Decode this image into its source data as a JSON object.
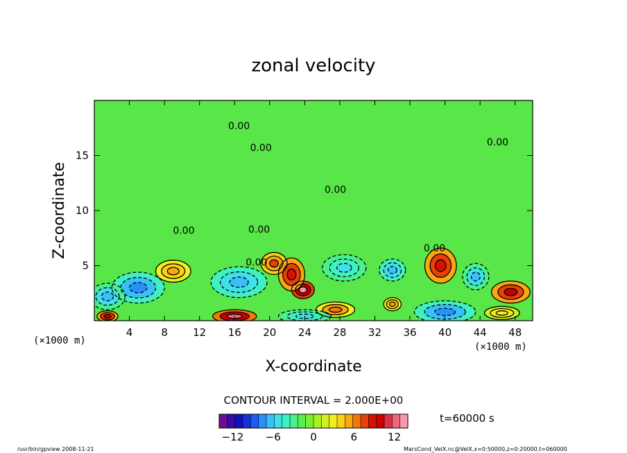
{
  "chart_data": {
    "type": "heatmap",
    "title": "zonal velocity",
    "xlabel": "X-coordinate",
    "ylabel": "Z-coordinate",
    "x_unit_left": "(×1000 m)",
    "x_unit_right": "(×1000 m)",
    "xlim": [
      0,
      50
    ],
    "ylim": [
      0,
      20
    ],
    "x_ticks": [
      4,
      8,
      12,
      16,
      20,
      24,
      28,
      32,
      36,
      40,
      44,
      48
    ],
    "y_ticks": [
      5,
      10,
      15
    ],
    "contour_interval_text": "CONTOUR INTERVAL = 2.000E+00",
    "time_label": "t=60000 s",
    "colorbar": {
      "range": [
        -14,
        14
      ],
      "ticks": [
        -12,
        -6,
        0,
        6,
        12
      ],
      "colors": [
        "#6a0f91",
        "#3a0aa8",
        "#1010c0",
        "#1430d8",
        "#1c5cf0",
        "#2890f8",
        "#38c0f8",
        "#40e0e8",
        "#40f0c0",
        "#48f090",
        "#58f050",
        "#78f030",
        "#a8f020",
        "#d0f020",
        "#f0f020",
        "#f8d018",
        "#f8a810",
        "#f07808",
        "#e84008",
        "#d81000",
        "#c80000",
        "#e03040",
        "#f06880",
        "#f898b0"
      ]
    },
    "contour_labels": [
      {
        "text": "0.00",
        "x": 16.5,
        "y": 17.4
      },
      {
        "text": "0.00",
        "x": 19.0,
        "y": 15.4
      },
      {
        "text": "0.00",
        "x": 46.0,
        "y": 15.9
      },
      {
        "text": "0.00",
        "x": 27.5,
        "y": 11.6
      },
      {
        "text": "0.00",
        "x": 10.2,
        "y": 7.9
      },
      {
        "text": "0.00",
        "x": 18.8,
        "y": 8.0
      },
      {
        "text": "0.00",
        "x": 38.8,
        "y": 6.3
      },
      {
        "text": "0.00",
        "x": 18.5,
        "y": 5.0
      }
    ],
    "blobs": [
      {
        "x": 16.5,
        "y": 3.5,
        "r": 3.2,
        "ry": 1.4,
        "v": -7
      },
      {
        "x": 5.0,
        "y": 3.0,
        "r": 3.0,
        "ry": 1.4,
        "v": -8
      },
      {
        "x": 1.5,
        "y": 2.2,
        "r": 2.0,
        "ry": 1.2,
        "v": -6
      },
      {
        "x": 9.0,
        "y": 4.5,
        "r": 2.0,
        "ry": 1.0,
        "v": 5
      },
      {
        "x": 20.5,
        "y": 5.2,
        "r": 1.5,
        "ry": 1.0,
        "v": 7
      },
      {
        "x": 23.8,
        "y": 2.8,
        "r": 1.3,
        "ry": 0.8,
        "v": 13
      },
      {
        "x": 22.5,
        "y": 4.2,
        "r": 1.5,
        "ry": 1.5,
        "v": 9
      },
      {
        "x": 27.5,
        "y": 1.0,
        "r": 2.2,
        "ry": 0.7,
        "v": 6
      },
      {
        "x": 28.5,
        "y": 4.8,
        "r": 2.5,
        "ry": 1.2,
        "v": -5
      },
      {
        "x": 34.0,
        "y": 4.6,
        "r": 1.5,
        "ry": 1.0,
        "v": -7
      },
      {
        "x": 39.5,
        "y": 5.0,
        "r": 1.8,
        "ry": 1.6,
        "v": 9
      },
      {
        "x": 43.5,
        "y": 4.0,
        "r": 1.5,
        "ry": 1.2,
        "v": -6
      },
      {
        "x": 47.5,
        "y": 2.6,
        "r": 2.2,
        "ry": 1.0,
        "v": 10
      },
      {
        "x": 40.0,
        "y": 0.8,
        "r": 3.5,
        "ry": 1.0,
        "v": -8
      },
      {
        "x": 24.0,
        "y": 0.4,
        "r": 3.0,
        "ry": 0.6,
        "v": -5
      },
      {
        "x": 16.0,
        "y": 0.4,
        "r": 2.5,
        "ry": 0.6,
        "v": 12
      },
      {
        "x": 1.5,
        "y": 0.4,
        "r": 1.2,
        "ry": 0.5,
        "v": 10
      },
      {
        "x": 34.0,
        "y": 1.5,
        "r": 1.0,
        "ry": 0.6,
        "v": 5
      },
      {
        "x": 46.5,
        "y": 0.7,
        "r": 2.0,
        "ry": 0.6,
        "v": 3
      }
    ]
  },
  "footer": {
    "left": "/usr/bin/gpview  2008-11-21",
    "right": "MarsCond_VelX.nc@VelX,x=0:50000,z=0:20000,t=060000"
  }
}
